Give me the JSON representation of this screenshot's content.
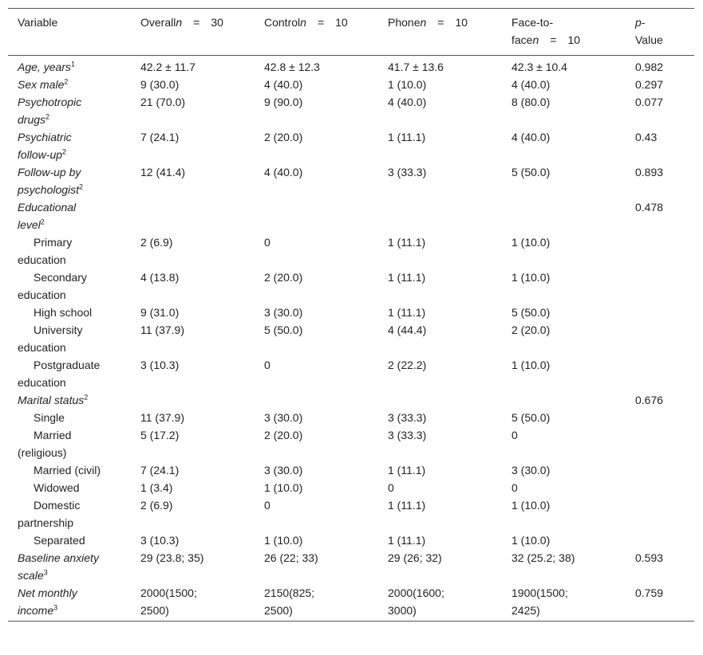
{
  "header": {
    "variable": "Variable",
    "n_symbol": "n",
    "equals": "=",
    "groups": [
      {
        "name": "Overall",
        "n": "30"
      },
      {
        "name": "Control",
        "n": "10"
      },
      {
        "name": "Phone",
        "n": "10"
      },
      {
        "name": "Face-to-face",
        "n": "10"
      }
    ],
    "p_symbol": "p",
    "p_label": "-Value"
  },
  "rows": [
    {
      "label": "Age, years",
      "note": "1",
      "italic": true,
      "indent": false,
      "cells": [
        "42.2 ± 11.7",
        "42.8 ± 12.3",
        "41.7 ± 13.6",
        "42.3 ± 10.4",
        "0.982"
      ]
    },
    {
      "label": "Sex male",
      "note": "2",
      "italic": true,
      "indent": false,
      "cells": [
        "9 (30.0)",
        "4 (40.0)",
        "1 (10.0)",
        "4 (40.0)",
        "0.297"
      ]
    },
    {
      "label": "Psychotropic drugs",
      "note": "2",
      "italic": true,
      "indent": false,
      "cells": [
        "21 (70.0)",
        "9 (90.0)",
        "4 (40.0)",
        "8 (80.0)",
        "0.077"
      ]
    },
    {
      "label": "Psychiatric follow-up",
      "note": "2",
      "italic": true,
      "indent": false,
      "cells": [
        "7 (24.1)",
        "2 (20.0)",
        "1 (11.1)",
        "4 (40.0)",
        "0.43"
      ]
    },
    {
      "label": "Follow-up by psychologist",
      "note": "2",
      "italic": true,
      "indent": false,
      "cells": [
        "12 (41.4)",
        "4 (40.0)",
        "3 (33.3)",
        "5 (50.0)",
        "0.893"
      ]
    },
    {
      "label": "Educational level",
      "note": "2",
      "italic": true,
      "indent": false,
      "cells": [
        null,
        null,
        null,
        null,
        "0.478"
      ]
    },
    {
      "label": "Primary education",
      "note": null,
      "italic": false,
      "indent": true,
      "cells": [
        "2 (6.9)",
        "0",
        "1 (11.1)",
        "1 (10.0)",
        null
      ]
    },
    {
      "label": "Secondary education",
      "note": null,
      "italic": false,
      "indent": true,
      "cells": [
        "4 (13.8)",
        "2 (20.0)",
        "1 (11.1)",
        "1 (10.0)",
        null
      ]
    },
    {
      "label": "High school",
      "note": null,
      "italic": false,
      "indent": true,
      "cells": [
        "9 (31.0)",
        "3 (30.0)",
        "1 (11.1)",
        "5 (50.0)",
        null
      ]
    },
    {
      "label": "University education",
      "note": null,
      "italic": false,
      "indent": true,
      "cells": [
        "11 (37.9)",
        "5 (50.0)",
        "4 (44.4)",
        "2 (20.0)",
        null
      ]
    },
    {
      "label": "Postgraduate education",
      "note": null,
      "italic": false,
      "indent": true,
      "cells": [
        "3 (10.3)",
        "0",
        "2 (22.2)",
        "1 (10.0)",
        null
      ]
    },
    {
      "label": "Marital status",
      "note": "2",
      "italic": true,
      "indent": false,
      "cells": [
        null,
        null,
        null,
        null,
        "0.676"
      ]
    },
    {
      "label": "Single",
      "note": null,
      "italic": false,
      "indent": true,
      "cells": [
        "11 (37.9)",
        "3 (30.0)",
        "3 (33.3)",
        "5 (50.0)",
        null
      ]
    },
    {
      "label": "Married (religious)",
      "note": null,
      "italic": false,
      "indent": true,
      "cells": [
        "5 (17.2)",
        "2 (20.0)",
        "3 (33.3)",
        "0",
        null
      ]
    },
    {
      "label": "Married (civil)",
      "note": null,
      "italic": false,
      "indent": true,
      "cells": [
        "7 (24.1)",
        "3 (30.0)",
        "1 (11.1)",
        "3 (30.0)",
        null
      ]
    },
    {
      "label": "Widowed",
      "note": null,
      "italic": false,
      "indent": true,
      "cells": [
        "1 (3.4)",
        "1 (10.0)",
        "0",
        "0",
        null
      ]
    },
    {
      "label": "Domestic partnership",
      "note": null,
      "italic": false,
      "indent": true,
      "cells": [
        "2 (6.9)",
        "0",
        "1 (11.1)",
        "1 (10.0)",
        null
      ]
    },
    {
      "label": "Separated",
      "note": null,
      "italic": false,
      "indent": true,
      "cells": [
        "3 (10.3)",
        "1 (10.0)",
        "1 (11.1)",
        "1 (10.0)",
        null
      ]
    },
    {
      "label": "Baseline anxiety scale",
      "note": "3",
      "italic": true,
      "indent": false,
      "cells": [
        "29 (23.8; 35)",
        "26 (22; 33)",
        "29 (26; 32)",
        "32 (25.2; 38)",
        "0.593"
      ]
    },
    {
      "label": "Net monthly income",
      "note": "3",
      "italic": true,
      "indent": false,
      "cells": [
        "2000(1500; 2500)",
        "2150(825; 2500)",
        "2000(1600; 3000)",
        "1900(1500; 2425)",
        "0.759"
      ]
    }
  ]
}
